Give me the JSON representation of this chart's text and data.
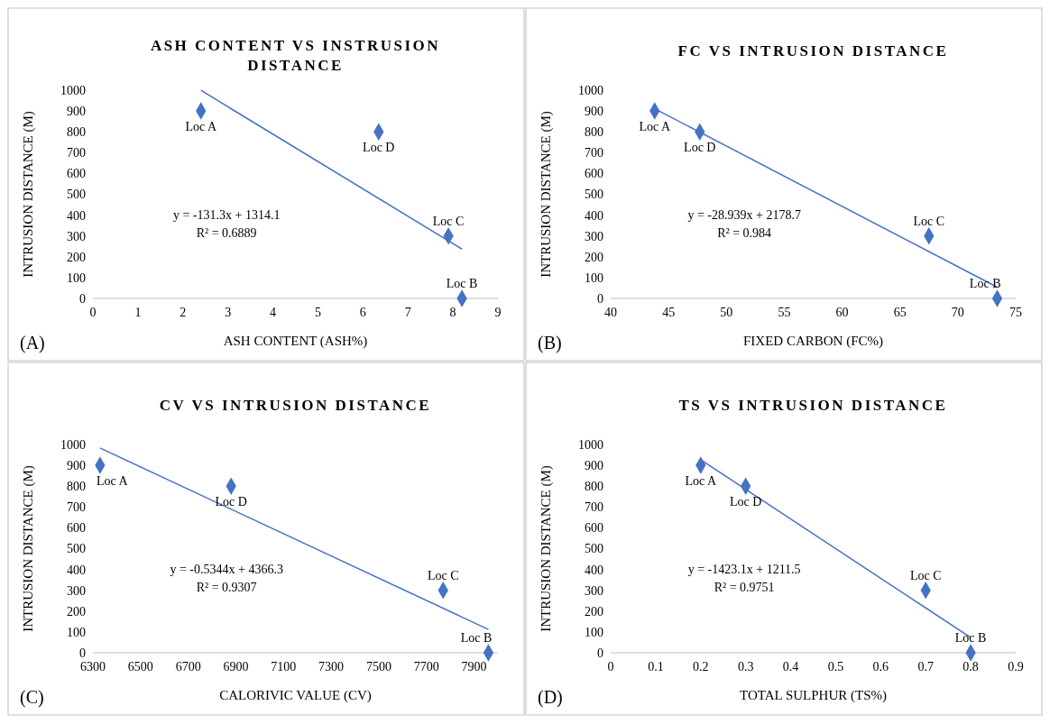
{
  "chart_data": [
    {
      "type": "scatter",
      "title": "ASH CONTENT VS INSTRUSION DISTANCE",
      "xlabel": "ASH CONTENT (ASH%)",
      "ylabel": "INTRUSION DISTANCE (M)",
      "xlim": [
        0,
        9
      ],
      "xticks": [
        0,
        1,
        2,
        3,
        4,
        5,
        6,
        7,
        8,
        9
      ],
      "ylim": [
        0,
        1000
      ],
      "yticks": [
        0,
        100,
        200,
        300,
        400,
        500,
        600,
        700,
        800,
        900,
        1000
      ],
      "series": [
        {
          "marker": "diamond",
          "color": "#4472c4",
          "x": [
            2.4,
            8.2,
            7.9,
            6.35
          ],
          "values": [
            900,
            0,
            300,
            800
          ]
        },
        {
          "type": "line",
          "color": "#4472c4",
          "x": [
            2.4,
            8.2
          ],
          "values": [
            999,
            237
          ]
        }
      ],
      "annotations": [
        "y = -131.3x + 1314.1",
        "R² = 0.6889",
        "(A)",
        {
          "text": "Loc A",
          "x": 2.4,
          "y": 900
        },
        {
          "text": "Loc B",
          "x": 8.2,
          "y": 0
        },
        {
          "text": "Loc C",
          "x": 7.9,
          "y": 300
        },
        {
          "text": "Loc D",
          "x": 6.35,
          "y": 800
        }
      ]
    },
    {
      "type": "scatter",
      "title": "FC VS INTRUSION DISTANCE",
      "xlabel": "FIXED CARBON (FC%)",
      "ylabel": "INTRUSION DISTANCE (M)",
      "xlim": [
        40,
        75
      ],
      "xticks": [
        40,
        45,
        50,
        55,
        60,
        65,
        70,
        75
      ],
      "ylim": [
        0,
        1000
      ],
      "yticks": [
        0,
        100,
        200,
        300,
        400,
        500,
        600,
        700,
        800,
        900,
        1000
      ],
      "series": [
        {
          "marker": "diamond",
          "color": "#4472c4",
          "x": [
            43.8,
            73.4,
            67.5,
            47.7
          ],
          "values": [
            900,
            0,
            300,
            800
          ]
        },
        {
          "type": "line",
          "color": "#4472c4",
          "x": [
            43.8,
            73.4
          ],
          "values": [
            911,
            54
          ]
        }
      ],
      "annotations": [
        "y = -28.939x + 2178.7",
        "R² = 0.984",
        "(B)",
        {
          "text": "Loc A",
          "x": 43.8,
          "y": 900
        },
        {
          "text": "Loc B",
          "x": 73.4,
          "y": 0
        },
        {
          "text": "Loc C",
          "x": 67.5,
          "y": 300
        },
        {
          "text": "Loc D",
          "x": 47.7,
          "y": 800
        }
      ]
    },
    {
      "type": "scatter",
      "title": "CV VS INTRUSION DISTANCE",
      "xlabel": "CALORIVIC VALUE (CV)",
      "ylabel": "INTRUSION DISTANCE (M)",
      "xlim": [
        6300,
        8000
      ],
      "xticks": [
        6300,
        6500,
        6700,
        6900,
        7100,
        7300,
        7500,
        7700,
        7900
      ],
      "ylim": [
        0,
        1000
      ],
      "yticks": [
        0,
        100,
        200,
        300,
        400,
        500,
        600,
        700,
        800,
        900,
        1000
      ],
      "series": [
        {
          "marker": "diamond",
          "color": "#4472c4",
          "x": [
            6330,
            7960,
            7770,
            6880
          ],
          "values": [
            900,
            0,
            300,
            800
          ]
        },
        {
          "type": "line",
          "color": "#4472c4",
          "x": [
            6330,
            7960
          ],
          "values": [
            983,
            112
          ]
        }
      ],
      "annotations": [
        "y = -0.5344x + 4366.3",
        "R² = 0.9307",
        "(C)",
        {
          "text": "Loc A",
          "x": 6330,
          "y": 900
        },
        {
          "text": "Loc B",
          "x": 7960,
          "y": 0
        },
        {
          "text": "Loc C",
          "x": 7770,
          "y": 300
        },
        {
          "text": "Loc D",
          "x": 6880,
          "y": 800
        }
      ]
    },
    {
      "type": "scatter",
      "title": "TS VS INTRUSION DISTANCE",
      "xlabel": "TOTAL SULPHUR (TS%)",
      "ylabel": "INTRUSION DISTANCE (M)",
      "xlim": [
        0,
        0.9
      ],
      "xticks": [
        0,
        0.1,
        0.2,
        0.3,
        0.4,
        0.5,
        0.6,
        0.7,
        0.8,
        0.9
      ],
      "ylim": [
        0,
        1000
      ],
      "yticks": [
        0,
        100,
        200,
        300,
        400,
        500,
        600,
        700,
        800,
        900,
        1000
      ],
      "series": [
        {
          "marker": "diamond",
          "color": "#4472c4",
          "x": [
            0.2,
            0.8,
            0.7,
            0.3
          ],
          "values": [
            900,
            0,
            300,
            800
          ]
        },
        {
          "type": "line",
          "color": "#4472c4",
          "x": [
            0.2,
            0.8
          ],
          "values": [
            927,
            73
          ]
        }
      ],
      "annotations": [
        "y = -1423.1x + 1211.5",
        "R² = 0.9751",
        "(D)",
        {
          "text": "Loc A",
          "x": 0.2,
          "y": 900
        },
        {
          "text": "Loc B",
          "x": 0.8,
          "y": 0
        },
        {
          "text": "Loc C",
          "x": 0.7,
          "y": 300
        },
        {
          "text": "Loc D",
          "x": 0.3,
          "y": 800
        }
      ]
    }
  ]
}
